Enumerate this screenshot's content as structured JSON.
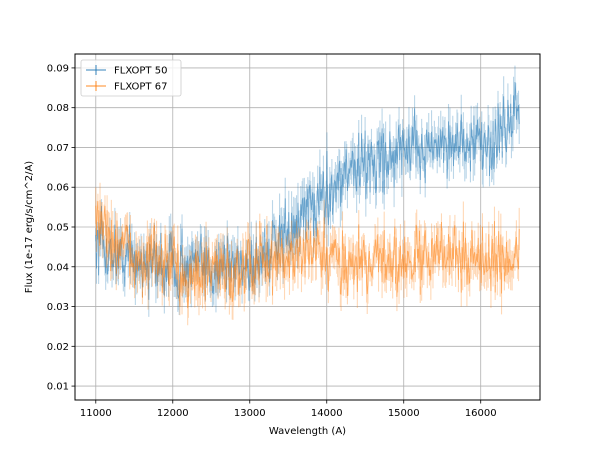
{
  "chart_data": {
    "type": "line",
    "xlabel": "Wavelength (A)",
    "ylabel": "Flux (1e-17 erg/s/cm^2/A)",
    "xlim": [
      10730,
      16770
    ],
    "ylim": [
      0.0065,
      0.0935
    ],
    "xticks": [
      11000,
      12000,
      13000,
      14000,
      15000,
      16000
    ],
    "yticks": [
      0.01,
      0.02,
      0.03,
      0.04,
      0.05,
      0.06,
      0.07,
      0.08,
      0.09
    ],
    "xtick_labels": [
      "11000",
      "12000",
      "13000",
      "14000",
      "15000",
      "16000"
    ],
    "ytick_labels": [
      "0.01",
      "0.02",
      "0.03",
      "0.04",
      "0.05",
      "0.06",
      "0.07",
      "0.08",
      "0.09"
    ],
    "grid": true,
    "legend_position": "top-left",
    "series": [
      {
        "name": "FLXOPT 50",
        "color": "#1f77b4",
        "x": [
          11000,
          11250,
          11500,
          11750,
          12000,
          12250,
          12500,
          12750,
          13000,
          13250,
          13500,
          13750,
          14000,
          14250,
          14500,
          14750,
          15000,
          15250,
          15500,
          15750,
          16000,
          16250,
          16500
        ],
        "y": [
          0.045,
          0.043,
          0.042,
          0.04,
          0.041,
          0.04,
          0.04,
          0.041,
          0.041,
          0.044,
          0.048,
          0.054,
          0.059,
          0.064,
          0.066,
          0.068,
          0.069,
          0.07,
          0.071,
          0.072,
          0.07,
          0.072,
          0.082
        ]
      },
      {
        "name": "FLXOPT 67",
        "color": "#ff7f0e",
        "x": [
          11000,
          11250,
          11500,
          11750,
          12000,
          12250,
          12500,
          12750,
          13000,
          13250,
          13500,
          13750,
          14000,
          14250,
          14500,
          14750,
          15000,
          15250,
          15500,
          15750,
          16000,
          16250,
          16500
        ],
        "y": [
          0.052,
          0.046,
          0.042,
          0.041,
          0.04,
          0.038,
          0.038,
          0.039,
          0.04,
          0.041,
          0.042,
          0.043,
          0.042,
          0.041,
          0.042,
          0.042,
          0.041,
          0.042,
          0.043,
          0.043,
          0.042,
          0.041,
          0.044
        ]
      }
    ]
  }
}
